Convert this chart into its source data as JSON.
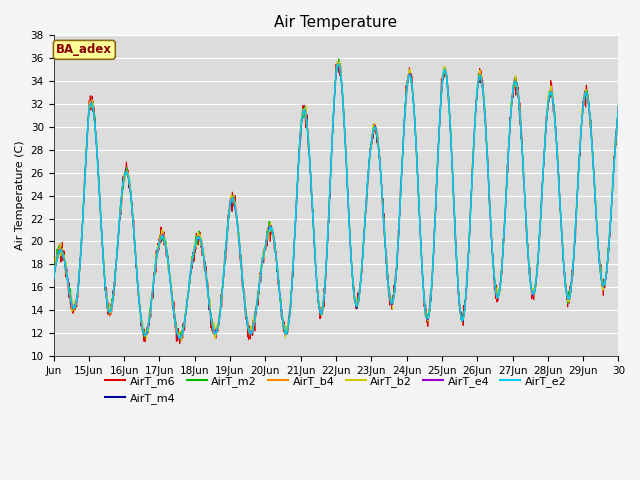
{
  "title": "Air Temperature",
  "ylabel": "Air Temperature (C)",
  "bg_color": "#dcdcdc",
  "fig_bg": "#f5f5f5",
  "ylim": [
    10,
    38
  ],
  "yticks": [
    10,
    12,
    14,
    16,
    18,
    20,
    22,
    24,
    26,
    28,
    30,
    32,
    34,
    36,
    38
  ],
  "series_names": [
    "AirT_m6",
    "AirT_m4",
    "AirT_m2",
    "AirT_b4",
    "AirT_b2",
    "AirT_e4",
    "AirT_e2"
  ],
  "series_colors": [
    "#dd0000",
    "#000099",
    "#00bb00",
    "#ff8800",
    "#cccc00",
    "#9900cc",
    "#00ccee"
  ],
  "series_lw": [
    0.8,
    0.8,
    0.8,
    0.8,
    0.8,
    0.8,
    1.2
  ],
  "xtick_labels": [
    "Jun",
    "15Jun",
    "16Jun",
    "17Jun",
    "18Jun",
    "19Jun",
    "20Jun",
    "21Jun",
    "22Jun",
    "23Jun",
    "24Jun",
    "25Jun",
    "26Jun",
    "27Jun",
    "28Jun",
    "29Jun",
    "30"
  ],
  "annotation_text": "BA_adex",
  "annotation_bg": "#ffff99",
  "annotation_fg": "#8b0000",
  "title_fontsize": 11,
  "label_fontsize": 8,
  "tick_fontsize": 7.5
}
